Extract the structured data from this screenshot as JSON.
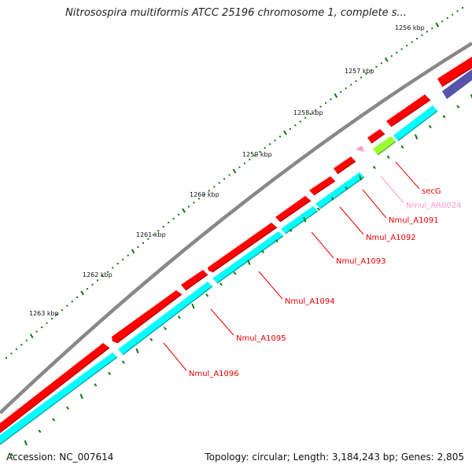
{
  "title": "Nitrosospira multiformis ATCC 25196 chromosome 1, complete s...",
  "accession_text": "Accession: NC_007614",
  "summary_text": "Topology: circular; Length: 3,184,243 bp; Genes: 2,805",
  "colors": {
    "backbone": "#808080",
    "gene_forward": "#ff0000",
    "gene_reverse": "#00ffff",
    "gene_secG": "#99ff33",
    "gene_ncRNA": "#ff99cc",
    "gene_other": "#5555aa",
    "tick": "#117711"
  },
  "scale_labels": [
    {
      "label": "1256 kbp"
    },
    {
      "label": "1257 kbp"
    },
    {
      "label": "1258 kbp"
    },
    {
      "label": "1259 kbp"
    },
    {
      "label": "1260 kbp"
    },
    {
      "label": "1261 kbp"
    },
    {
      "label": "1262 kbp"
    },
    {
      "label": "1263 kbp"
    }
  ],
  "gene_labels": [
    {
      "name": "secG",
      "color": "#ee0000"
    },
    {
      "name": "Nmul_AR0024",
      "color": "#ff99cc"
    },
    {
      "name": "Nmul_A1091",
      "color": "#ee0000"
    },
    {
      "name": "Nmul_A1092",
      "color": "#ee0000"
    },
    {
      "name": "Nmul_A1093",
      "color": "#ee0000"
    },
    {
      "name": "Nmul_A1094",
      "color": "#ee0000"
    },
    {
      "name": "Nmul_A1095",
      "color": "#ee0000"
    },
    {
      "name": "Nmul_A1096",
      "color": "#ee0000"
    }
  ]
}
